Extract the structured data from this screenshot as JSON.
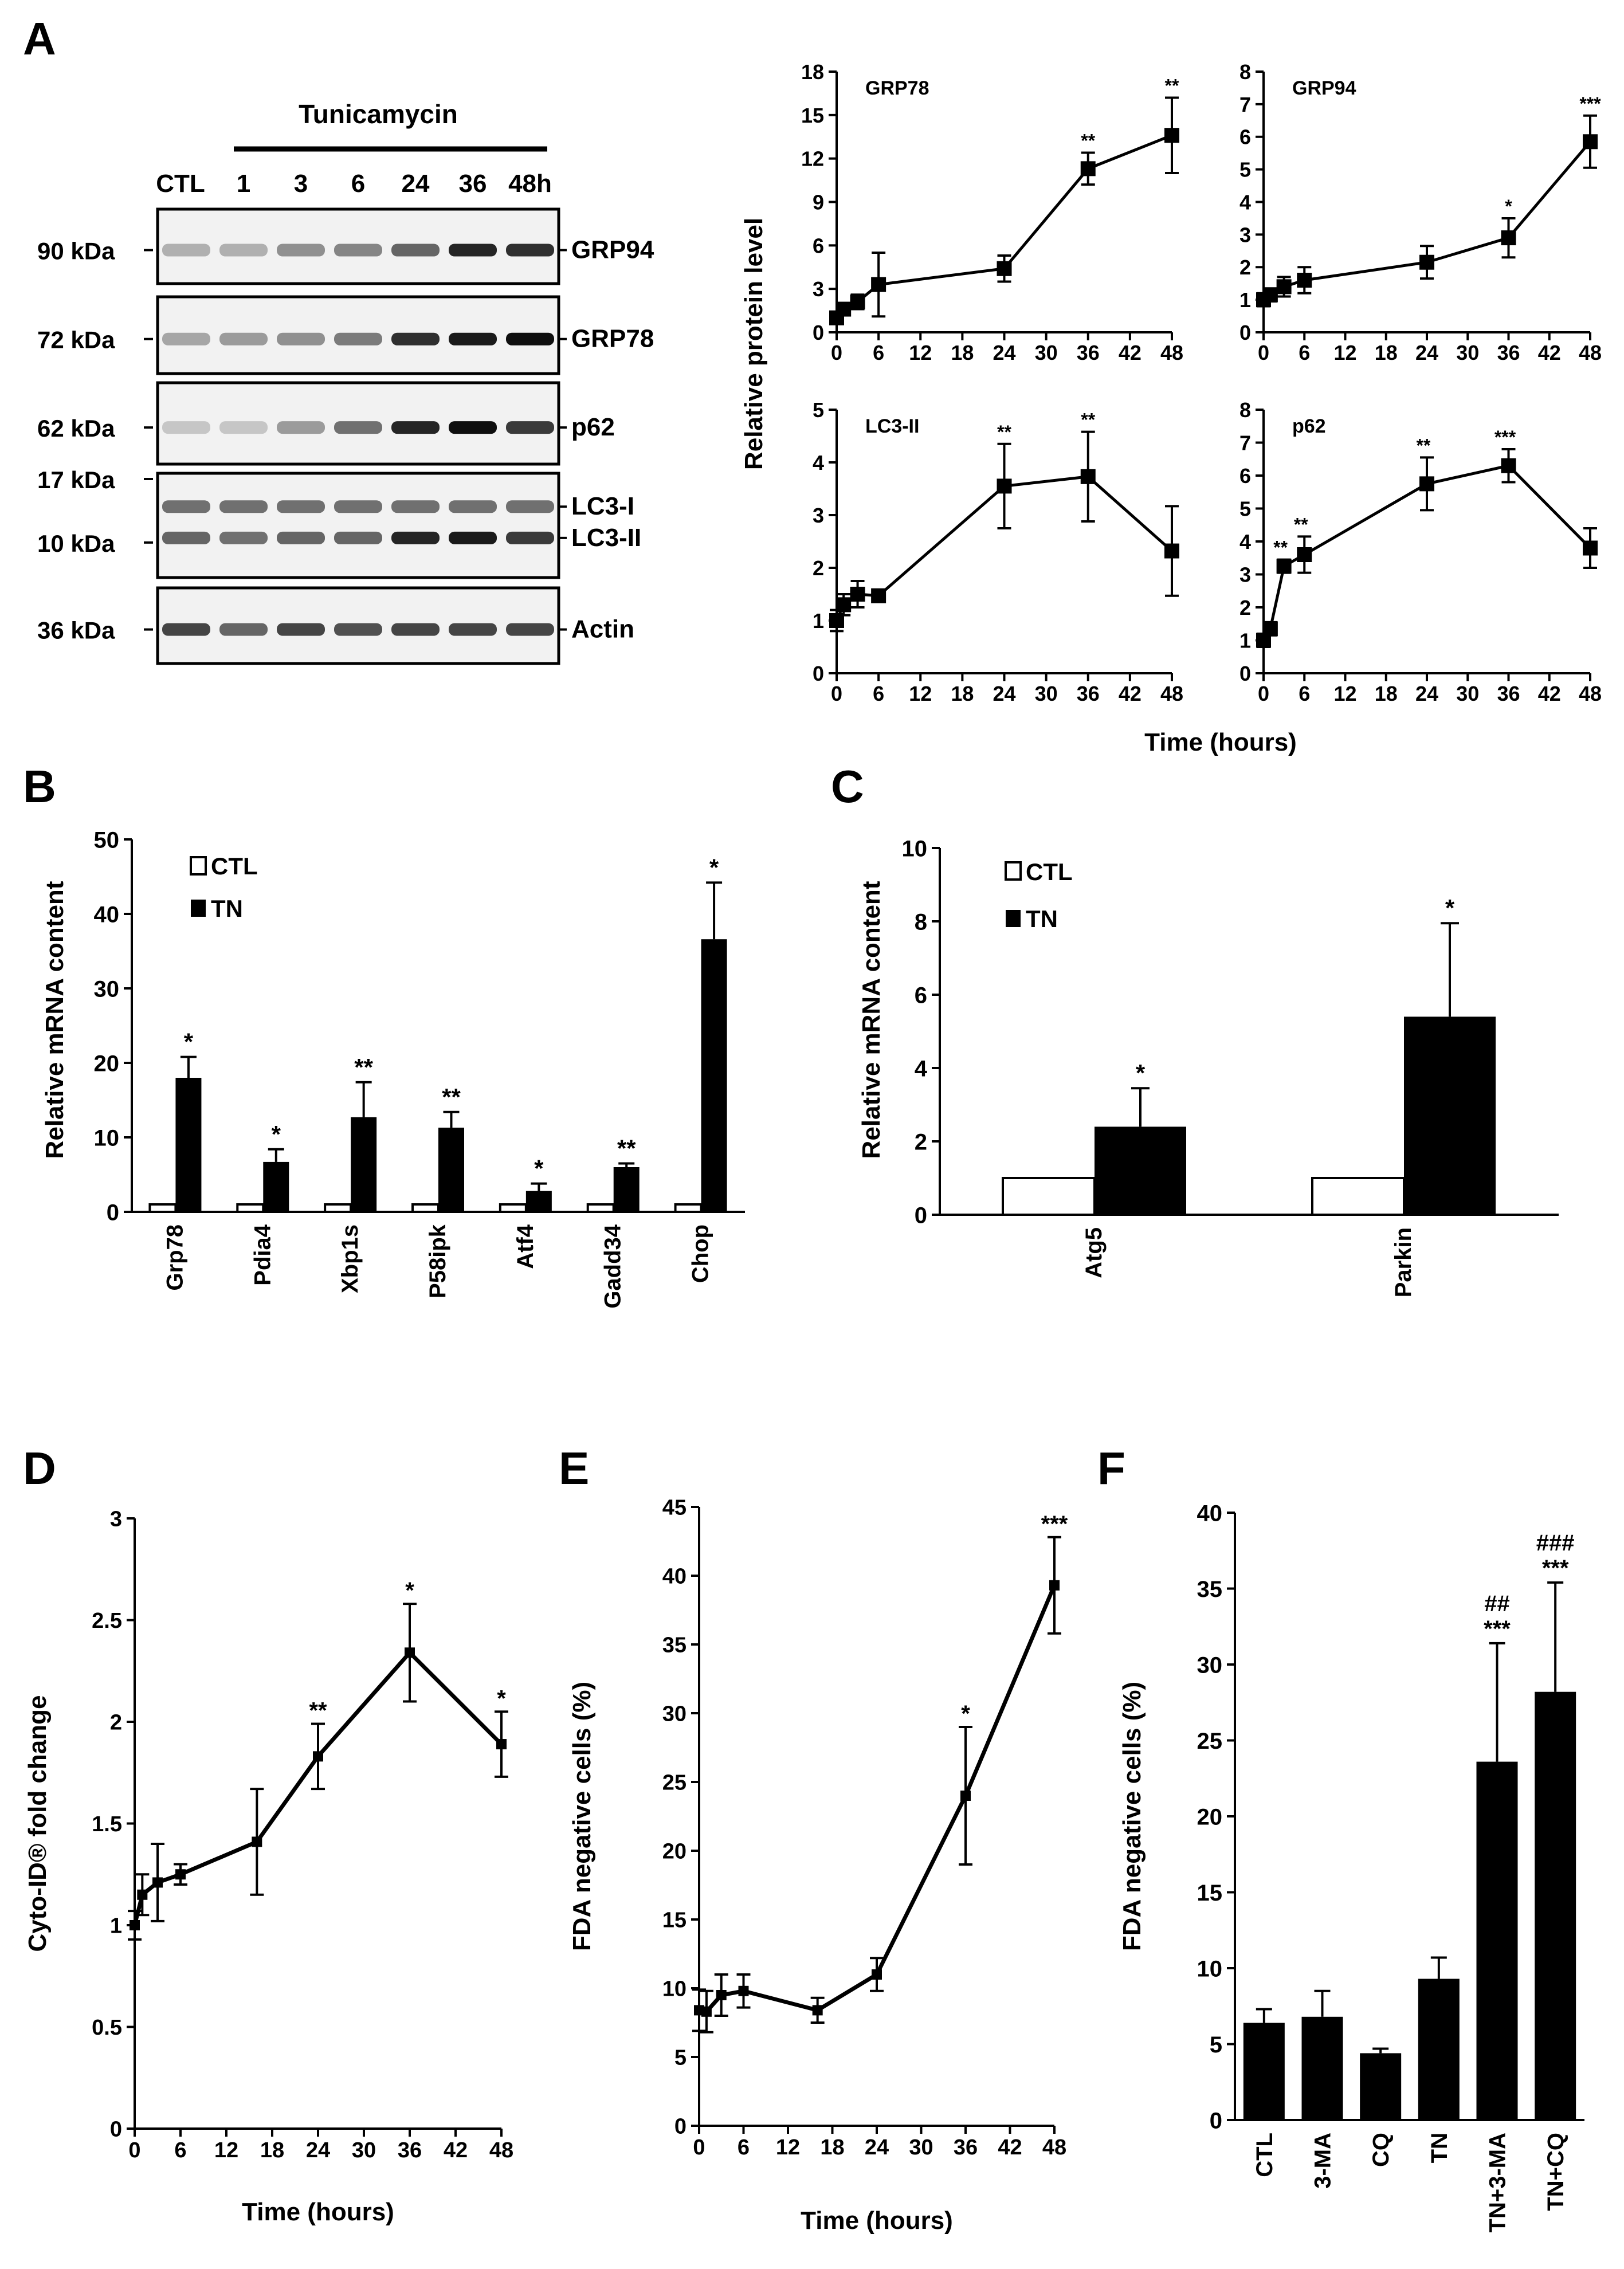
{
  "panel_labels": {
    "a": "A",
    "b": "B",
    "c": "C",
    "d": "D",
    "e": "E",
    "f": "F"
  },
  "blot": {
    "treatment": "Tunicamycin",
    "lanes": [
      "CTL",
      "1",
      "3",
      "6",
      "24",
      "36",
      "48h"
    ],
    "bands": [
      {
        "mw": "90 kDa",
        "proteins": [
          "GRP94"
        ],
        "pattern": [
          0.25,
          0.25,
          0.4,
          0.45,
          0.6,
          0.9,
          0.85
        ]
      },
      {
        "mw": "72 kDa",
        "proteins": [
          "GRP78"
        ],
        "pattern": [
          0.3,
          0.35,
          0.4,
          0.5,
          0.85,
          0.95,
          1.0
        ]
      },
      {
        "mw": "62 kDa",
        "proteins": [
          "p62"
        ],
        "pattern": [
          0.15,
          0.15,
          0.35,
          0.55,
          0.9,
          1.0,
          0.8
        ]
      },
      {
        "mw": "17 kDa",
        "mw2": "10 kDa",
        "proteins": [
          "LC3-I",
          "LC3-II"
        ],
        "pattern": [
          0.6,
          0.55,
          0.6,
          0.6,
          0.9,
          0.95,
          0.8
        ]
      },
      {
        "mw": "36 kDa",
        "proteins": [
          "Actin"
        ],
        "pattern": [
          0.75,
          0.6,
          0.75,
          0.7,
          0.75,
          0.75,
          0.75
        ]
      }
    ]
  },
  "shared_labels": {
    "a_ylabel": "Relative protein level",
    "a_xlabel": "Time (hours)",
    "b_ylabel": "Relative mRNA content",
    "c_ylabel": "Relative mRNA content",
    "legend_ctl": "CTL",
    "legend_tn": "TN"
  },
  "chart_data": [
    {
      "id": "grp78",
      "type": "line",
      "title": "GRP78",
      "x": [
        0,
        1,
        3,
        6,
        24,
        36,
        48
      ],
      "values": [
        1,
        1.6,
        2.1,
        3.3,
        4.4,
        11.3,
        13.6
      ],
      "errors": [
        0.3,
        0.4,
        0.5,
        2.2,
        0.9,
        1.1,
        2.6
      ],
      "sig": [
        "",
        "",
        "",
        "",
        "",
        "**",
        "**"
      ],
      "xlim": [
        0,
        48
      ],
      "ylim": [
        0,
        18
      ],
      "xticks": [
        0,
        6,
        12,
        18,
        24,
        30,
        36,
        42,
        48
      ],
      "yticks": [
        0,
        3,
        6,
        9,
        12,
        15,
        18
      ]
    },
    {
      "id": "grp94",
      "type": "line",
      "title": "GRP94",
      "x": [
        0,
        1,
        3,
        6,
        24,
        36,
        48
      ],
      "values": [
        1,
        1.15,
        1.4,
        1.6,
        2.15,
        2.9,
        5.85
      ],
      "errors": [
        0.2,
        0.2,
        0.3,
        0.4,
        0.5,
        0.6,
        0.8
      ],
      "sig": [
        "",
        "",
        "",
        "",
        "",
        "*",
        "***"
      ],
      "xlim": [
        0,
        48
      ],
      "ylim": [
        0,
        8
      ],
      "xticks": [
        0,
        6,
        12,
        18,
        24,
        30,
        36,
        42,
        48
      ],
      "yticks": [
        0,
        1,
        2,
        3,
        4,
        5,
        6,
        7,
        8
      ]
    },
    {
      "id": "lc3",
      "type": "line",
      "title": "LC3-II",
      "x": [
        0,
        1,
        3,
        6,
        24,
        36,
        48
      ],
      "values": [
        1,
        1.3,
        1.5,
        1.47,
        3.55,
        3.73,
        2.32
      ],
      "errors": [
        0.2,
        0.2,
        0.25,
        0.05,
        0.8,
        0.85,
        0.85
      ],
      "sig": [
        "",
        "",
        "",
        "",
        "**",
        "**",
        ""
      ],
      "xlim": [
        0,
        48
      ],
      "ylim": [
        0,
        5
      ],
      "xticks": [
        0,
        6,
        12,
        18,
        24,
        30,
        36,
        42,
        48
      ],
      "yticks": [
        0,
        1,
        2,
        3,
        4,
        5
      ]
    },
    {
      "id": "p62",
      "type": "line",
      "title": "p62",
      "x": [
        0,
        1,
        3,
        6,
        24,
        36,
        48
      ],
      "values": [
        1,
        1.35,
        3.25,
        3.6,
        5.75,
        6.3,
        3.8
      ],
      "errors": [
        0.2,
        0.2,
        0.2,
        0.55,
        0.8,
        0.5,
        0.6
      ],
      "sig": [
        "",
        "",
        "**",
        "**",
        "**",
        "***",
        ""
      ],
      "xlim": [
        0,
        48
      ],
      "ylim": [
        0,
        8
      ],
      "xticks": [
        0,
        6,
        12,
        18,
        24,
        30,
        36,
        42,
        48
      ],
      "yticks": [
        0,
        1,
        2,
        3,
        4,
        5,
        6,
        7,
        8
      ]
    },
    {
      "id": "b",
      "type": "bar",
      "categories": [
        "Grp78",
        "Pdia4",
        "Xbp1s",
        "P58ipk",
        "Atf4",
        "Gadd34",
        "Chop"
      ],
      "series": [
        {
          "name": "CTL",
          "values": [
            1,
            1,
            1,
            1,
            1,
            1,
            1
          ]
        },
        {
          "name": "TN",
          "values": [
            18,
            6.7,
            12.7,
            11.3,
            2.8,
            6,
            36.6
          ],
          "errors": [
            2.8,
            1.7,
            4.7,
            2.1,
            1,
            0.5,
            7.6
          ],
          "sig": [
            "*",
            "*",
            "**",
            "**",
            "*",
            "**",
            "*"
          ]
        }
      ],
      "ylim": [
        0,
        50
      ],
      "yticks": [
        0,
        10,
        20,
        30,
        40,
        50
      ]
    },
    {
      "id": "c",
      "type": "bar",
      "categories": [
        "Atg5",
        "Parkin"
      ],
      "series": [
        {
          "name": "CTL",
          "values": [
            1,
            1
          ]
        },
        {
          "name": "TN",
          "values": [
            2.4,
            5.4
          ],
          "errors": [
            1.05,
            2.55
          ],
          "sig": [
            "*",
            "*"
          ]
        }
      ],
      "ylim": [
        0,
        10
      ],
      "yticks": [
        0,
        2,
        4,
        6,
        8,
        10
      ]
    },
    {
      "id": "d",
      "type": "line",
      "xlabel": "Time (hours)",
      "ylabel": "Cyto-ID® fold change",
      "x": [
        0,
        1,
        3,
        6,
        16,
        24,
        36,
        48
      ],
      "values": [
        1,
        1.15,
        1.21,
        1.25,
        1.41,
        1.83,
        2.34,
        1.89
      ],
      "errors": [
        0.07,
        0.1,
        0.19,
        0.05,
        0.26,
        0.16,
        0.24,
        0.16
      ],
      "sig": [
        "",
        "",
        "",
        "",
        "",
        "**",
        "*",
        "*"
      ],
      "xlim": [
        0,
        48
      ],
      "ylim": [
        0,
        3
      ],
      "xticks": [
        0,
        6,
        12,
        18,
        24,
        30,
        36,
        42,
        48
      ],
      "yticks": [
        0,
        0.5,
        1,
        1.5,
        2,
        2.5,
        3
      ]
    },
    {
      "id": "e",
      "type": "line",
      "xlabel": "Time (hours)",
      "ylabel": "FDA negative cells  (%)",
      "x": [
        0,
        1,
        3,
        6,
        16,
        24,
        36,
        48
      ],
      "values": [
        8.4,
        8.3,
        9.5,
        9.8,
        8.4,
        11,
        24,
        39.3
      ],
      "errors": [
        1.5,
        1.5,
        1.5,
        1.2,
        0.9,
        1.2,
        5,
        3.5
      ],
      "sig": [
        "",
        "",
        "",
        "",
        "",
        "",
        "*",
        "***"
      ],
      "xlim": [
        0,
        48
      ],
      "ylim": [
        0,
        45
      ],
      "xticks": [
        0,
        6,
        12,
        18,
        24,
        30,
        36,
        42,
        48
      ],
      "yticks": [
        0,
        5,
        10,
        15,
        20,
        25,
        30,
        35,
        40,
        45
      ]
    },
    {
      "id": "f",
      "type": "bar",
      "ylabel": "FDA negative cells (%)",
      "categories": [
        "CTL",
        "3-MA",
        "CQ",
        "TN",
        "TN+3-MA",
        "TN+CQ"
      ],
      "values": [
        6.4,
        6.8,
        4.4,
        9.3,
        23.6,
        28.2
      ],
      "errors": [
        0.9,
        1.7,
        0.3,
        1.4,
        7.8,
        7.2
      ],
      "sig": [
        "",
        "",
        "",
        "",
        "***",
        "***"
      ],
      "sig2": [
        "",
        "",
        "",
        "",
        "##",
        "###"
      ],
      "ylim": [
        0,
        40
      ],
      "yticks": [
        0,
        5,
        10,
        15,
        20,
        25,
        30,
        35,
        40
      ]
    }
  ]
}
